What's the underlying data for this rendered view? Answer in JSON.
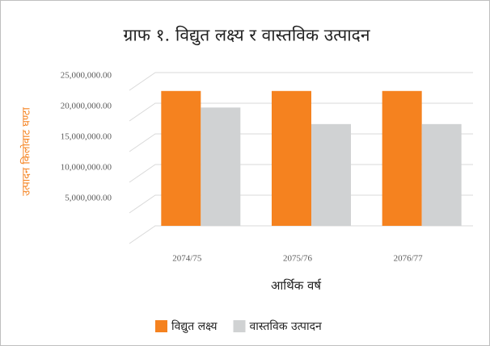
{
  "chart_data": {
    "type": "bar",
    "title": "ग्राफ १. विद्युत लक्ष्य र वास्तविक उत्पादन",
    "y_label": "उत्पादन किलोवाट घण्टा",
    "x_label": "आर्थिक वर्ष",
    "categories": [
      "2074/75",
      "2075/76",
      "2076/77"
    ],
    "series": [
      {
        "name": "विद्युत लक्ष्य",
        "color": "#f5821f",
        "values": [
          22000000,
          22000000,
          22000000
        ]
      },
      {
        "name": "वास्तविक उत्पादन",
        "color": "#d0d2d3",
        "values": [
          19300000,
          16600000,
          16600000
        ]
      }
    ],
    "ylim": [
      0,
      25000000
    ],
    "yticks": [
      {
        "value": 5000000,
        "label": "5,000,000.00"
      },
      {
        "value": 10000000,
        "label": "10,000,000.00"
      },
      {
        "value": 15000000,
        "label": "15,000,000.00"
      },
      {
        "value": 20000000,
        "label": "20,000,000.00"
      },
      {
        "value": 25000000,
        "label": "25,000,000.00"
      }
    ],
    "grid": true
  }
}
